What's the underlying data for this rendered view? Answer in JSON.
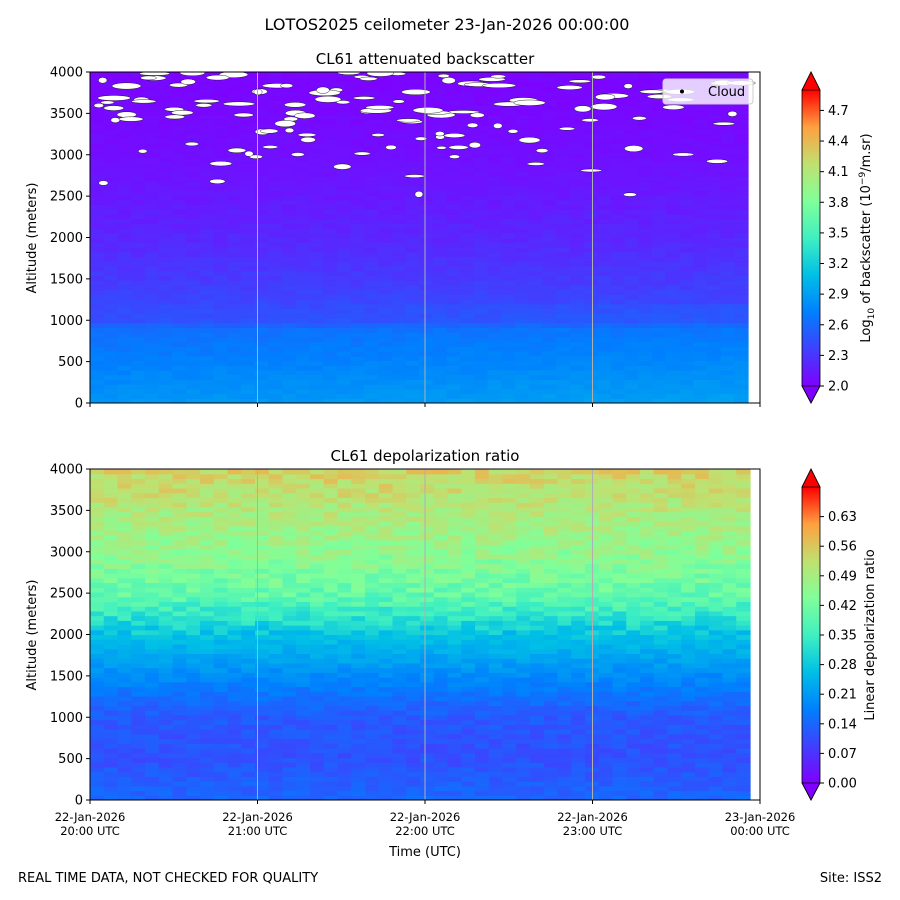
{
  "suptitle": "LOTOS2025 ceilometer 23-Jan-2026 00:00:00",
  "footer_left": "REAL TIME DATA, NOT CHECKED FOR QUALITY",
  "footer_right": "Site: ISS2",
  "chart_data": [
    {
      "type": "heatmap",
      "title": "CL61 attenuated backscatter",
      "xlabel": "",
      "ylabel": "Altitude (meters)",
      "ylim": [
        0,
        4000
      ],
      "yticks": [
        "0",
        "500",
        "1000",
        "1500",
        "2000",
        "2500",
        "3000",
        "3500",
        "4000"
      ],
      "xticks": [],
      "colorbar": {
        "label_prefix": "Log",
        "label_sub": "10",
        "label_mid": " of backscatter (10",
        "label_sup": "−9",
        "label_suffix": "/m.sr)",
        "range": [
          2.0,
          4.9
        ],
        "ticks": [
          "2.0",
          "2.3",
          "2.6",
          "2.9",
          "3.2",
          "3.5",
          "3.8",
          "4.1",
          "4.4",
          "4.7"
        ],
        "colormap": "rainbow"
      },
      "field_profile": [
        {
          "alt": 0,
          "value": 2.85
        },
        {
          "alt": 500,
          "value": 2.72
        },
        {
          "alt": 900,
          "value": 2.62
        },
        {
          "alt": 1000,
          "value": 2.45
        },
        {
          "alt": 1500,
          "value": 2.33
        },
        {
          "alt": 2000,
          "value": 2.22
        },
        {
          "alt": 2500,
          "value": 2.14
        },
        {
          "alt": 3000,
          "value": 2.08
        },
        {
          "alt": 3500,
          "value": 2.05
        },
        {
          "alt": 4000,
          "value": 2.03
        }
      ],
      "legend": {
        "label": "Cloud",
        "position": "top-right"
      },
      "clouds_note": "white cloud-flag markers scattered between ~2400 and 4000 m"
    },
    {
      "type": "heatmap",
      "title": "CL61 depolarization ratio",
      "xlabel": "Time (UTC)",
      "ylabel": "Altitude (meters)",
      "ylim": [
        0,
        4000
      ],
      "yticks": [
        "0",
        "500",
        "1000",
        "1500",
        "2000",
        "2500",
        "3000",
        "3500",
        "4000"
      ],
      "xticks": [
        {
          "line1": "22-Jan-2026",
          "line2": "20:00 UTC"
        },
        {
          "line1": "22-Jan-2026",
          "line2": "21:00 UTC"
        },
        {
          "line1": "22-Jan-2026",
          "line2": "22:00 UTC"
        },
        {
          "line1": "22-Jan-2026",
          "line2": "23:00 UTC"
        },
        {
          "line1": "23-Jan-2026",
          "line2": "00:00 UTC"
        }
      ],
      "colorbar": {
        "label": "Linear depolarization ratio",
        "range": [
          0.0,
          0.7
        ],
        "ticks": [
          "0.00",
          "0.07",
          "0.14",
          "0.21",
          "0.28",
          "0.35",
          "0.42",
          "0.49",
          "0.56",
          "0.63"
        ],
        "colormap": "rainbow"
      },
      "field_profile": [
        {
          "alt": 0,
          "value": 0.14
        },
        {
          "alt": 500,
          "value": 0.11
        },
        {
          "alt": 1000,
          "value": 0.12
        },
        {
          "alt": 1500,
          "value": 0.19
        },
        {
          "alt": 2000,
          "value": 0.27
        },
        {
          "alt": 2500,
          "value": 0.4
        },
        {
          "alt": 3000,
          "value": 0.46
        },
        {
          "alt": 3500,
          "value": 0.5
        },
        {
          "alt": 4000,
          "value": 0.55
        }
      ]
    }
  ]
}
